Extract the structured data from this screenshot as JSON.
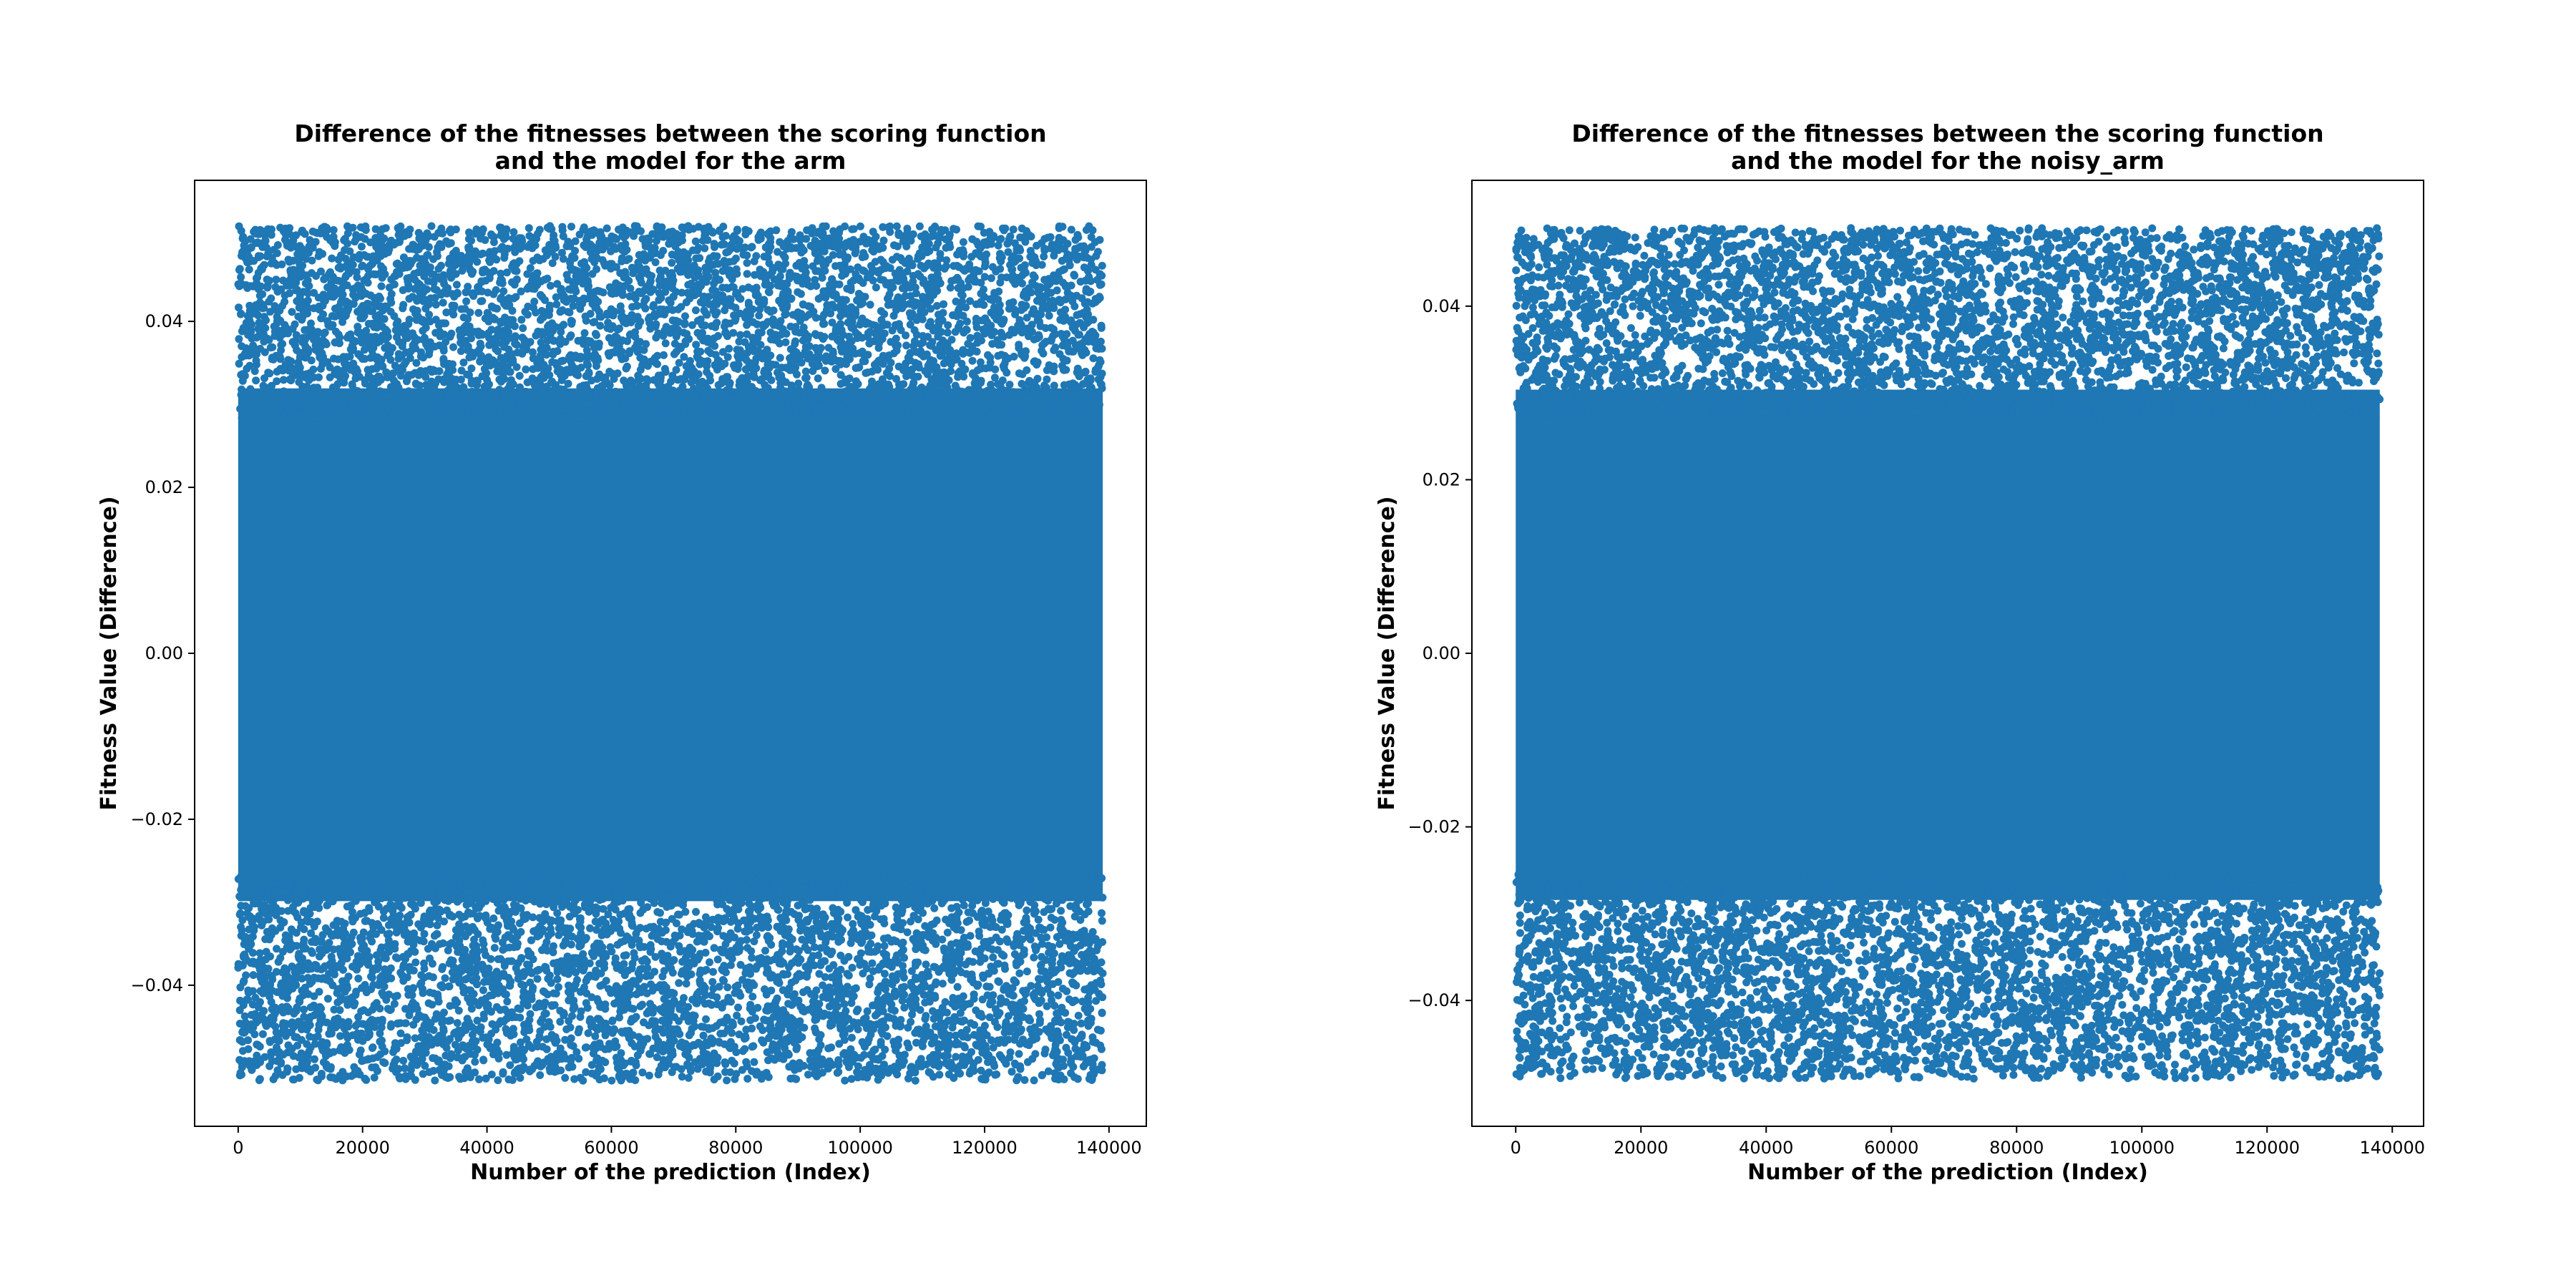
{
  "chart_data": [
    {
      "type": "scatter",
      "title_line1": "Difference of the fitnesses between the scoring function",
      "title_line2": "and the model for the arm",
      "xlabel": "Number of the prediction (Index)",
      "ylabel": "Fitness Value (Difference)",
      "xlim": [
        -7000,
        146000
      ],
      "ylim": [
        -0.057,
        0.057
      ],
      "xticks": [
        0,
        20000,
        40000,
        60000,
        80000,
        100000,
        120000,
        140000
      ],
      "xtick_labels": [
        "0",
        "20000",
        "40000",
        "60000",
        "80000",
        "100000",
        "120000",
        "140000"
      ],
      "yticks": [
        -0.04,
        -0.02,
        0.0,
        0.02,
        0.04
      ],
      "ytick_labels": [
        "−0.04",
        "−0.02",
        "0.00",
        "0.02",
        "0.04"
      ],
      "point_color": "#1f77b4",
      "x_range": [
        0,
        139000
      ],
      "y_range": [
        -0.0515,
        0.0515
      ],
      "grid": false
    },
    {
      "type": "scatter",
      "title_line1": "Difference of the fitnesses between the scoring function",
      "title_line2": "and the model for the noisy_arm",
      "xlabel": "Number of the prediction (Index)",
      "ylabel": "Fitness Value (Difference)",
      "xlim": [
        -7000,
        145000
      ],
      "ylim": [
        -0.0545,
        0.0545
      ],
      "xticks": [
        0,
        20000,
        40000,
        60000,
        80000,
        100000,
        120000,
        140000
      ],
      "xtick_labels": [
        "0",
        "20000",
        "40000",
        "60000",
        "80000",
        "100000",
        "120000",
        "140000"
      ],
      "yticks": [
        -0.04,
        -0.02,
        0.0,
        0.02,
        0.04
      ],
      "ytick_labels": [
        "−0.04",
        "−0.02",
        "0.00",
        "0.02",
        "0.04"
      ],
      "point_color": "#1f77b4",
      "x_range": [
        0,
        138000
      ],
      "y_range": [
        -0.049,
        0.049
      ],
      "grid": false
    }
  ]
}
